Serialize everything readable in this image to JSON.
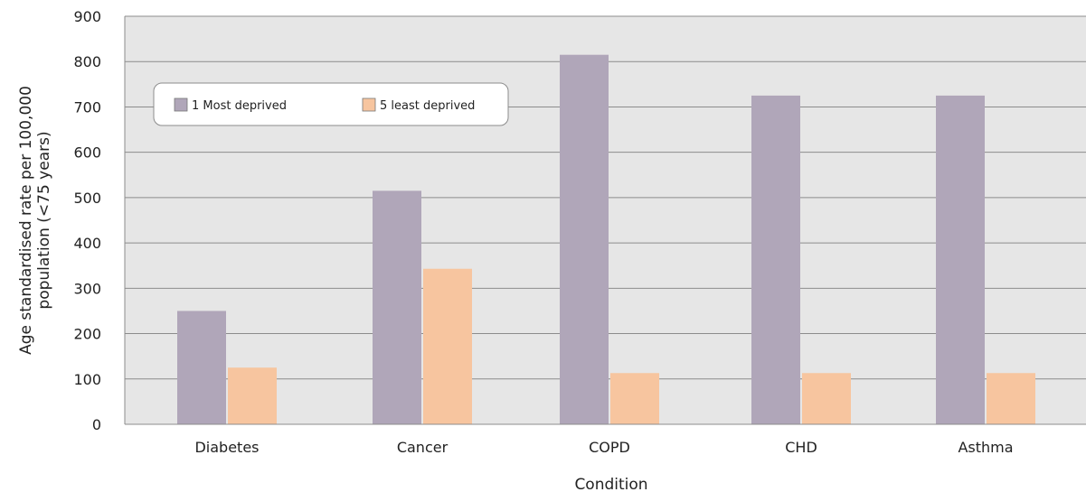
{
  "chart_data": {
    "type": "bar",
    "title": "",
    "xlabel": "Condition",
    "ylabel_lines": [
      "Age standardised rate per 100,000",
      "population (<75 years)"
    ],
    "categories": [
      "Diabetes",
      "Cancer",
      "COPD",
      "CHD",
      "Asthma"
    ],
    "series": [
      {
        "name": "1 Most deprived",
        "color": "#b0a6b9",
        "values": [
          250,
          515,
          815,
          725,
          725
        ]
      },
      {
        "name": "5 least deprived",
        "color": "#f7c59f",
        "values": [
          125,
          343,
          113,
          113,
          113
        ]
      }
    ],
    "ylim": [
      0,
      900
    ],
    "yticks": [
      0,
      100,
      200,
      300,
      400,
      500,
      600,
      700,
      800,
      900
    ],
    "grid": true,
    "legend_position": "top-left",
    "plot_background": "#e6e6e6",
    "grid_color": "#8c8c8c"
  }
}
